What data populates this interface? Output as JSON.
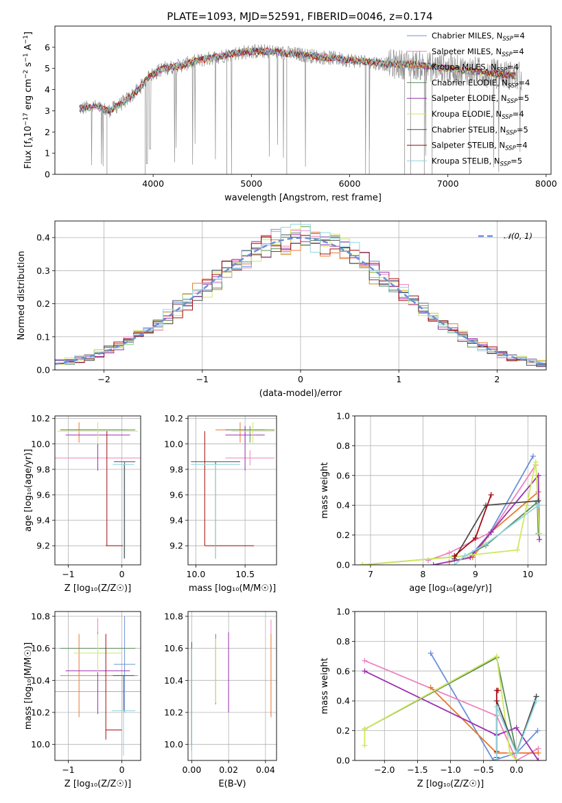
{
  "colors": {
    "chabrier_miles": "#6a8fd8",
    "salpeter_miles": "#ee82be",
    "kroupa_miles": "#e8782a",
    "chabrier_elodie": "#5a8a5f",
    "salpeter_elodie": "#9a2fb0",
    "kroupa_elodie": "#cfe85a",
    "chabrier_stelib": "#4c4c4c",
    "salpeter_stelib": "#a5080c",
    "kroupa_stelib": "#8fd6dc",
    "observed": "#8c8c8c"
  },
  "chart_data": [
    {
      "type": "line",
      "title": "PLATE=1093, MJD=52591, FIBERID=0046, z=0.174",
      "xlabel": "wavelength [Angstrom, rest frame]",
      "ylabel_prefix": "Flux [f",
      "ylabel_sub": "λ",
      "ylabel_mid": "10",
      "ylabel_sup": "−17",
      "ylabel_end": " erg cm",
      "ylabel_sup2": "−2",
      "ylabel_end2": " s",
      "ylabel_sup3": "−1",
      "ylabel_end3": " A",
      "ylabel_sup4": "−1",
      "ylabel_close": "]",
      "xlim": [
        3000,
        8050
      ],
      "ylim": [
        0,
        7
      ],
      "xticks": [
        4000,
        5000,
        6000,
        7000,
        8000
      ],
      "yticks": [
        0,
        1,
        2,
        3,
        4,
        5,
        6
      ],
      "legend_position": "right",
      "legend": [
        {
          "name": "Chabrier MILES, N",
          "sub": "SSP",
          "val": "=4",
          "color_key": "chabrier_miles"
        },
        {
          "name": "Salpeter MILES, N",
          "sub": "SSP",
          "val": "=4",
          "color_key": "salpeter_miles"
        },
        {
          "name": "Kroupa MILES, N",
          "sub": "SSP",
          "val": "=4",
          "color_key": "kroupa_miles"
        },
        {
          "name": "Chabrier ELODIE, N",
          "sub": "SSP",
          "val": "=4",
          "color_key": "chabrier_elodie"
        },
        {
          "name": "Salpeter ELODIE, N",
          "sub": "SSP",
          "val": "=5",
          "color_key": "salpeter_elodie"
        },
        {
          "name": "Kroupa ELODIE, N",
          "sub": "SSP",
          "val": "=4",
          "color_key": "kroupa_elodie"
        },
        {
          "name": "Chabrier STELIB, N",
          "sub": "SSP",
          "val": "=5",
          "color_key": "chabrier_stelib"
        },
        {
          "name": "Salpeter STELIB, N",
          "sub": "SSP",
          "val": "=4",
          "color_key": "salpeter_stelib"
        },
        {
          "name": "Kroupa STELIB, N",
          "sub": "SSP",
          "val": "=5",
          "color_key": "kroupa_stelib"
        }
      ],
      "continuum": [
        [
          3250,
          3.1
        ],
        [
          3400,
          3.2
        ],
        [
          3550,
          3.0
        ],
        [
          3700,
          3.4
        ],
        [
          3850,
          4.0
        ],
        [
          3950,
          4.6
        ],
        [
          4100,
          5.0
        ],
        [
          4250,
          5.1
        ],
        [
          4400,
          5.3
        ],
        [
          4600,
          5.5
        ],
        [
          4800,
          5.7
        ],
        [
          5000,
          5.8
        ],
        [
          5200,
          5.8
        ],
        [
          5400,
          5.7
        ],
        [
          5600,
          5.6
        ],
        [
          5800,
          5.5
        ],
        [
          6000,
          5.4
        ],
        [
          6200,
          5.3
        ],
        [
          6400,
          5.2
        ],
        [
          6600,
          5.2
        ],
        [
          6800,
          5.1
        ],
        [
          7000,
          5.0
        ],
        [
          7200,
          4.9
        ],
        [
          7400,
          4.8
        ],
        [
          7600,
          4.7
        ],
        [
          7750,
          4.6
        ]
      ]
    },
    {
      "type": "bar",
      "xlabel": "(data-model)/error",
      "ylabel": "Normed distribution",
      "xlim": [
        -2.5,
        2.5
      ],
      "ylim": [
        0,
        0.45
      ],
      "xticks": [
        -2,
        -1,
        0,
        1,
        2
      ],
      "yticks": [
        0.0,
        0.1,
        0.2,
        0.3,
        0.4
      ],
      "legend_label": "𝒩(0, 1)",
      "legend_position": "top-right",
      "bin_width": 0.1,
      "bin_start": -2.5
    },
    {
      "type": "scatter",
      "xlabel": "Z [log₁₀(Z/Z☉)]",
      "ylabel": "age  [log₁₀(age/yr)]",
      "xlim": [
        -1.25,
        0.35
      ],
      "ylim": [
        9.05,
        10.22
      ],
      "xticks": [
        -1,
        0
      ],
      "yticks": [
        9.2,
        9.4,
        9.6,
        9.8,
        10.0,
        10.2
      ],
      "series": [
        {
          "color_key": "chabrier_miles",
          "x": -0.45,
          "xerr": [
            0.55,
            0.55
          ],
          "y": 10.11,
          "yerr": [
            0.1,
            0.03
          ]
        },
        {
          "color_key": "salpeter_miles",
          "x": -0.45,
          "xerr": [
            0.8,
            0.8
          ],
          "y": 9.89,
          "yerr": [
            0.06,
            0.06
          ]
        },
        {
          "color_key": "kroupa_miles",
          "x": -0.8,
          "xerr": [
            0.35,
            0.35
          ],
          "y": 10.11,
          "yerr": [
            0.1,
            0.06
          ]
        },
        {
          "color_key": "chabrier_elodie",
          "x": -0.45,
          "xerr": [
            0.7,
            0.7
          ],
          "y": 10.11,
          "yerr": [
            0.1,
            0.03
          ]
        },
        {
          "color_key": "salpeter_elodie",
          "x": -0.45,
          "xerr": [
            0.6,
            0.6
          ],
          "y": 10.07,
          "yerr": [
            0.28,
            0.07
          ]
        },
        {
          "color_key": "kroupa_elodie",
          "x": -0.45,
          "xerr": [
            0.75,
            0.75
          ],
          "y": 10.1,
          "yerr": [
            0.1,
            0.07
          ]
        },
        {
          "color_key": "chabrier_stelib",
          "x": 0.05,
          "xerr": [
            0.2,
            0.2
          ],
          "y": 9.86,
          "yerr": [
            0.76,
            0.0
          ]
        },
        {
          "color_key": "salpeter_stelib",
          "x": -0.28,
          "xerr": [
            0.02,
            0.3
          ],
          "y": 9.2,
          "yerr": [
            0.0,
            0.9
          ]
        },
        {
          "color_key": "kroupa_stelib",
          "x": 0.03,
          "xerr": [
            0.2,
            0.2
          ],
          "y": 9.84,
          "yerr": [
            0.74,
            0.0
          ]
        }
      ]
    },
    {
      "type": "scatter",
      "xlabel": "mass [log₁₀(M/M☉)]",
      "ylabel": "",
      "xlim": [
        9.92,
        10.82
      ],
      "ylim": [
        9.05,
        10.22
      ],
      "xticks": [
        10.0,
        10.5
      ],
      "yticks": [
        9.2,
        9.4,
        9.6,
        9.8,
        10.0,
        10.2
      ],
      "series": [
        {
          "color_key": "chabrier_miles",
          "x": 10.5,
          "xerr": [
            0.2,
            0.2
          ],
          "y": 10.11,
          "yerr": [
            0.1,
            0.03
          ]
        },
        {
          "color_key": "salpeter_miles",
          "x": 10.55,
          "xerr": [
            0.25,
            0.25
          ],
          "y": 9.89,
          "yerr": [
            0.06,
            0.06
          ]
        },
        {
          "color_key": "kroupa_miles",
          "x": 10.45,
          "xerr": [
            0.25,
            0.25
          ],
          "y": 10.11,
          "yerr": [
            0.1,
            0.06
          ]
        },
        {
          "color_key": "chabrier_elodie",
          "x": 10.55,
          "xerr": [
            0.25,
            0.25
          ],
          "y": 10.11,
          "yerr": [
            0.1,
            0.03
          ]
        },
        {
          "color_key": "salpeter_elodie",
          "x": 10.5,
          "xerr": [
            0.2,
            0.2
          ],
          "y": 10.07,
          "yerr": [
            0.28,
            0.07
          ]
        },
        {
          "color_key": "kroupa_elodie",
          "x": 10.58,
          "xerr": [
            0.22,
            0.22
          ],
          "y": 10.1,
          "yerr": [
            0.1,
            0.07
          ]
        },
        {
          "color_key": "chabrier_stelib",
          "x": 10.2,
          "xerr": [
            0.25,
            0.25
          ],
          "y": 9.86,
          "yerr": [
            0.76,
            0.0
          ]
        },
        {
          "color_key": "salpeter_stelib",
          "x": 10.09,
          "xerr": [
            0.0,
            0.5
          ],
          "y": 9.2,
          "yerr": [
            0.0,
            0.9
          ]
        },
        {
          "color_key": "kroupa_stelib",
          "x": 10.2,
          "xerr": [
            0.25,
            0.25
          ],
          "y": 9.84,
          "yerr": [
            0.74,
            0.0
          ]
        }
      ]
    },
    {
      "type": "line",
      "xlabel": "age  [log₁₀(age/yr)]",
      "ylabel": "mass weight",
      "xlim": [
        6.7,
        10.35
      ],
      "ylim": [
        0,
        1.0
      ],
      "xticks": [
        7,
        8,
        9,
        10
      ],
      "yticks": [
        0.0,
        0.2,
        0.4,
        0.6,
        0.8,
        1.0
      ],
      "series": [
        {
          "color_key": "chabrier_miles",
          "x": [
            8.95,
            9.25,
            10.1
          ],
          "y": [
            0.08,
            0.2,
            0.73
          ]
        },
        {
          "color_key": "salpeter_miles",
          "x": [
            8.1,
            8.5,
            9.3,
            10.15
          ],
          "y": [
            0.03,
            0.08,
            0.22,
            0.67
          ]
        },
        {
          "color_key": "kroupa_miles",
          "x": [
            8.5,
            8.95,
            9.3,
            10.2
          ],
          "y": [
            0.02,
            0.05,
            0.22,
            0.49
          ]
        },
        {
          "color_key": "chabrier_elodie",
          "x": [
            6.85,
            8.8,
            9.2,
            10.18,
            10.2
          ],
          "y": [
            0.0,
            0.06,
            0.13,
            0.42,
            0.21
          ]
        },
        {
          "color_key": "salpeter_elodie",
          "x": [
            8.2,
            8.9,
            9.3,
            10.2,
            10.22
          ],
          "y": [
            0.0,
            0.05,
            0.22,
            0.6,
            0.17
          ]
        },
        {
          "color_key": "kroupa_elodie",
          "x": [
            6.85,
            8.5,
            9.8,
            10.15,
            10.22
          ],
          "y": [
            0.0,
            0.05,
            0.1,
            0.69,
            0.21
          ]
        },
        {
          "color_key": "chabrier_stelib",
          "x": [
            8.6,
            9.2,
            10.2
          ],
          "y": [
            0.04,
            0.4,
            0.43
          ]
        },
        {
          "color_key": "salpeter_stelib",
          "x": [
            8.6,
            9.0,
            9.3
          ],
          "y": [
            0.06,
            0.18,
            0.47
          ]
        },
        {
          "color_key": "kroupa_stelib",
          "x": [
            8.6,
            8.8,
            9.2,
            10.2,
            10.22
          ],
          "y": [
            0.0,
            0.06,
            0.14,
            0.4,
            0.4
          ]
        }
      ]
    },
    {
      "type": "scatter",
      "xlabel": "Z [log₁₀(Z/Z☉)]",
      "ylabel": "mass [log₁₀(M/M☉)]",
      "xlim": [
        -1.25,
        0.35
      ],
      "ylim": [
        9.9,
        10.83
      ],
      "xticks": [
        -1,
        0
      ],
      "yticks": [
        10.0,
        10.2,
        10.4,
        10.6,
        10.8
      ],
      "series": [
        {
          "color_key": "chabrier_miles",
          "x": 0.05,
          "xerr": [
            0.2,
            0.2
          ],
          "y": 10.5,
          "yerr": [
            0.3,
            0.3
          ]
        },
        {
          "color_key": "salpeter_miles",
          "x": -0.45,
          "xerr": [
            0.8,
            0.8
          ],
          "y": 10.33,
          "yerr": [
            0.12,
            0.46
          ]
        },
        {
          "color_key": "kroupa_miles",
          "x": -0.8,
          "xerr": [
            0.35,
            1.1
          ],
          "y": 10.43,
          "yerr": [
            0.26,
            0.26
          ]
        },
        {
          "color_key": "chabrier_elodie",
          "x": -0.45,
          "xerr": [
            0.7,
            0.7
          ],
          "y": 10.6,
          "yerr": [
            0.1,
            0.1
          ]
        },
        {
          "color_key": "salpeter_elodie",
          "x": -0.45,
          "xerr": [
            0.6,
            0.6
          ],
          "y": 10.46,
          "yerr": [
            0.27,
            0.23
          ]
        },
        {
          "color_key": "kroupa_elodie",
          "x": -0.45,
          "xerr": [
            0.45,
            0.45
          ],
          "y": 10.57,
          "yerr": [
            0.12,
            0.12
          ]
        },
        {
          "color_key": "chabrier_stelib",
          "x": 0.03,
          "xerr": [
            0.2,
            0.2
          ],
          "y": 10.43,
          "yerr": [
            0.49,
            0.0
          ]
        },
        {
          "color_key": "salpeter_stelib",
          "x": -0.3,
          "xerr": [
            0.0,
            0.3
          ],
          "y": 10.09,
          "yerr": [
            0.06,
            0.6
          ]
        },
        {
          "color_key": "kroupa_stelib",
          "x": 0.03,
          "xerr": [
            0.22,
            0.22
          ],
          "y": 10.21,
          "yerr": [
            0.28,
            0.0
          ]
        }
      ]
    },
    {
      "type": "scatter",
      "xlabel": "E(B-V)",
      "ylabel": "",
      "xlim": [
        -0.002,
        0.046
      ],
      "ylim": [
        9.9,
        10.83
      ],
      "xticks": [
        0.0,
        0.02,
        0.04
      ],
      "yticks": [
        10.0,
        10.2,
        10.4,
        10.6,
        10.8
      ],
      "series": [
        {
          "color_key": "chabrier_miles",
          "x": 0.0,
          "y": 10.3,
          "yerr": [
            0.3,
            0.3
          ]
        },
        {
          "color_key": "salpeter_miles",
          "x": 0.043,
          "y": 10.48,
          "yerr": [
            0.3,
            0.3
          ]
        },
        {
          "color_key": "kroupa_miles",
          "x": 0.043,
          "y": 10.43,
          "yerr": [
            0.26,
            0.26
          ]
        },
        {
          "color_key": "chabrier_elodie",
          "x": 0.013,
          "y": 10.47,
          "yerr": [
            0.22,
            0.22
          ]
        },
        {
          "color_key": "salpeter_elodie",
          "x": 0.02,
          "y": 10.45,
          "yerr": [
            0.25,
            0.25
          ]
        },
        {
          "color_key": "kroupa_elodie",
          "x": 0.013,
          "y": 10.46,
          "yerr": [
            0.2,
            0.2
          ]
        },
        {
          "color_key": "chabrier_stelib",
          "x": 0.0,
          "y": 10.3,
          "yerr": [
            0.34,
            0.34
          ]
        },
        {
          "color_key": "salpeter_stelib",
          "x": 0.0,
          "y": 10.3,
          "yerr": [
            0.3,
            0.3
          ]
        },
        {
          "color_key": "kroupa_stelib",
          "x": 0.0,
          "y": 10.27,
          "yerr": [
            0.33,
            0.33
          ]
        }
      ]
    },
    {
      "type": "line",
      "xlabel": "Z [log₁₀(Z/Z☉)]",
      "ylabel": "mass weight",
      "xlim": [
        -2.45,
        0.45
      ],
      "ylim": [
        0,
        1.0
      ],
      "xticks": [
        -2.0,
        -1.5,
        -1.0,
        -0.5,
        0.0
      ],
      "yticks": [
        0.0,
        0.2,
        0.4,
        0.6,
        0.8,
        1.0
      ],
      "series": [
        {
          "color_key": "chabrier_miles",
          "x": [
            -1.3,
            -0.35,
            0.0,
            0.32
          ],
          "y": [
            0.72,
            0.0,
            0.05,
            0.2
          ]
        },
        {
          "color_key": "salpeter_miles",
          "x": [
            -2.3,
            -0.3,
            0.0,
            0.33
          ],
          "y": [
            0.67,
            0.3,
            0.0,
            0.08
          ]
        },
        {
          "color_key": "kroupa_miles",
          "x": [
            -1.3,
            -0.3,
            0.33
          ],
          "y": [
            0.49,
            0.05,
            0.05
          ]
        },
        {
          "color_key": "chabrier_elodie",
          "x": [
            -2.3,
            -0.3,
            0.0,
            0.3
          ],
          "y": [
            0.21,
            0.69,
            0.05,
            0.43
          ]
        },
        {
          "color_key": "salpeter_elodie",
          "x": [
            -2.3,
            -0.3,
            0.0,
            0.33
          ],
          "y": [
            0.6,
            0.17,
            0.22,
            0.0
          ]
        },
        {
          "color_key": "kroupa_elodie",
          "x": [
            -2.3,
            -2.3,
            -0.3,
            -0.1,
            0.0
          ],
          "y": [
            0.1,
            0.21,
            0.7,
            0.05,
            0.0
          ]
        },
        {
          "color_key": "chabrier_stelib",
          "x": [
            -0.3,
            -0.3,
            0.0,
            0.3
          ],
          "y": [
            0.02,
            0.4,
            0.05,
            0.43
          ]
        },
        {
          "color_key": "salpeter_stelib",
          "x": [
            -0.3,
            -0.3,
            -0.28
          ],
          "y": [
            0.06,
            0.47,
            0.47
          ]
        },
        {
          "color_key": "kroupa_stelib",
          "x": [
            -0.3,
            -0.3,
            0.0,
            0.3
          ],
          "y": [
            0.0,
            0.36,
            0.05,
            0.4
          ]
        }
      ]
    }
  ]
}
